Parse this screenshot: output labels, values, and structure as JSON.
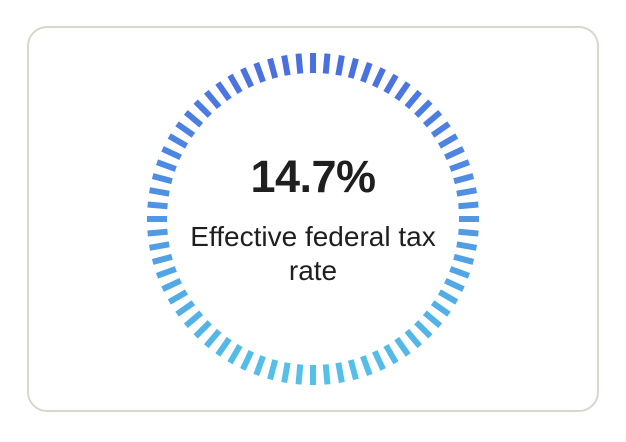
{
  "tax_card": {
    "rate_text": "14.7%",
    "label": "Effective federal tax rate"
  },
  "gauge": {
    "tick_count": 72,
    "gradient_top": "#4a6fe0",
    "gradient_bottom": "#55c0e8"
  },
  "colors": {
    "card_border": "#d9d6cc",
    "text": "#1f1f1f"
  }
}
